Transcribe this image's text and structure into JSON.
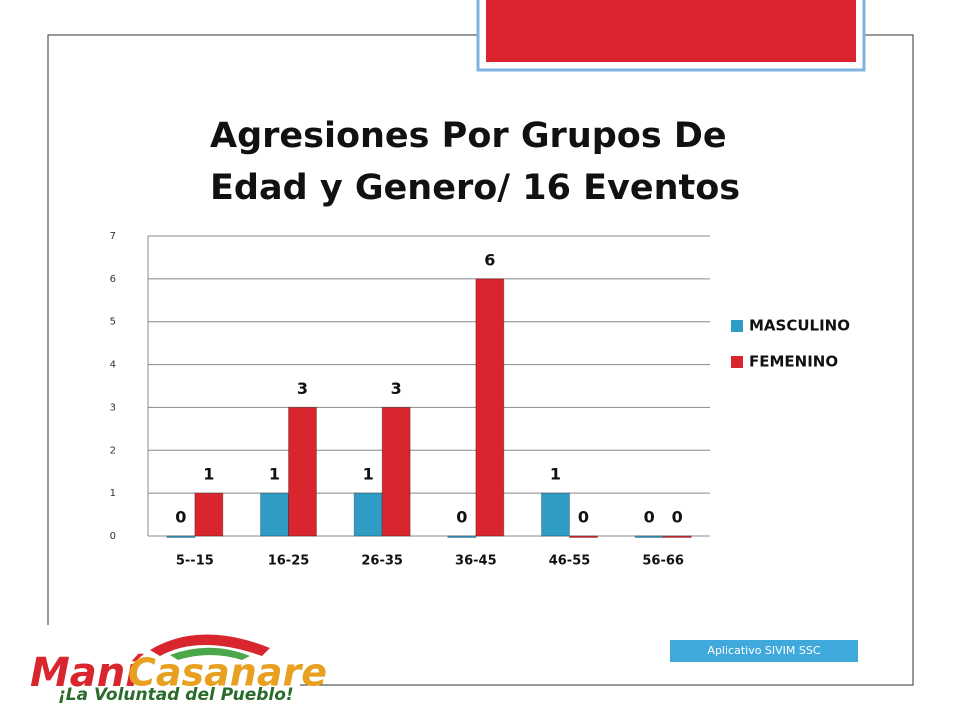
{
  "chart_data": {
    "type": "bar",
    "title": "Agresiones Por Grupos De Edad y Genero/ 16 Eventos",
    "categories": [
      "5--15",
      "16-25",
      "26-35",
      "36-45",
      "46-55",
      "56-66"
    ],
    "series": [
      {
        "name": "MASCULINO",
        "color": "#2e9cc4",
        "values": [
          0,
          1,
          1,
          0,
          1,
          0
        ]
      },
      {
        "name": "FEMENINO",
        "color": "#d9262e",
        "values": [
          1,
          3,
          3,
          6,
          0,
          0
        ]
      }
    ],
    "ylim": [
      0,
      7
    ],
    "yticks": [
      0,
      1,
      2,
      3,
      4,
      5,
      6,
      7
    ],
    "grid": true,
    "legend": "right",
    "data_labels": true
  },
  "badge": {
    "text": "Aplicativo SIVIM SSC"
  },
  "logo": {
    "name_a": "Maní",
    "name_b": "Casanare",
    "slogan": "¡La Voluntad del Pueblo!"
  }
}
